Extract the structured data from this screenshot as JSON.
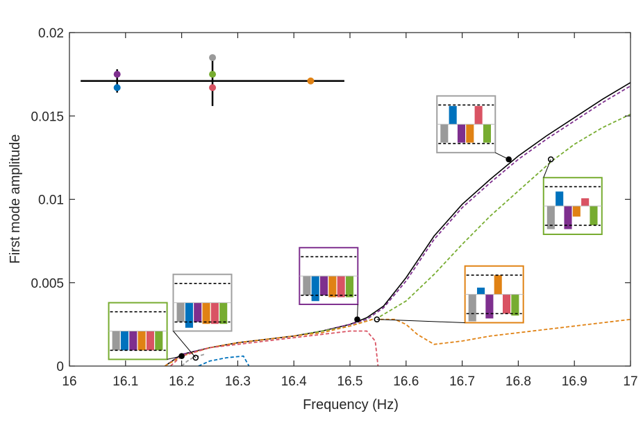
{
  "chart_data": {
    "type": "line",
    "xlabel": "Frequency (Hz)",
    "ylabel": "First mode amplitude",
    "xlim": [
      16,
      17
    ],
    "ylim": [
      0,
      0.02
    ],
    "xticks": [
      16,
      16.1,
      16.2,
      16.3,
      16.4,
      16.5,
      16.6,
      16.7,
      16.8,
      16.9,
      17
    ],
    "xtick_labels": [
      "16",
      "16.1",
      "16.2",
      "16.3",
      "16.4",
      "16.5",
      "16.6",
      "16.7",
      "16.8",
      "16.9",
      "17"
    ],
    "yticks": [
      0,
      0.005,
      0.01,
      0.015,
      0.02
    ],
    "ytick_labels": [
      "0",
      "0.005",
      "0.01",
      "0.015",
      "0.02"
    ],
    "grid": false,
    "series": [
      {
        "color": "#000000",
        "style": "solid",
        "x": [
          16.17,
          16.2,
          16.25,
          16.3,
          16.35,
          16.4,
          16.45,
          16.5,
          16.53,
          16.56,
          16.6,
          16.65,
          16.7,
          16.75,
          16.8,
          16.85,
          16.9,
          16.95,
          17.0
        ],
        "y": [
          0.0,
          0.0007,
          0.0011,
          0.0014,
          0.0016,
          0.0018,
          0.0021,
          0.0025,
          0.0029,
          0.0036,
          0.0053,
          0.0078,
          0.0097,
          0.0112,
          0.0126,
          0.0138,
          0.0149,
          0.016,
          0.017
        ]
      },
      {
        "color": "#7E2F8E",
        "style": "dashed",
        "x": [
          16.17,
          16.2,
          16.25,
          16.3,
          16.35,
          16.4,
          16.45,
          16.5,
          16.53,
          16.56,
          16.6,
          16.65,
          16.7,
          16.75,
          16.8,
          16.85,
          16.9,
          16.95,
          17.0
        ],
        "y": [
          0.0,
          0.0007,
          0.0011,
          0.0014,
          0.0016,
          0.0018,
          0.0021,
          0.0025,
          0.0028,
          0.0035,
          0.0051,
          0.0076,
          0.0095,
          0.011,
          0.0124,
          0.0136,
          0.0147,
          0.0158,
          0.0168
        ]
      },
      {
        "color": "#77AC30",
        "style": "dashed",
        "x": [
          16.17,
          16.2,
          16.25,
          16.3,
          16.35,
          16.4,
          16.45,
          16.5,
          16.55,
          16.6,
          16.65,
          16.7,
          16.75,
          16.8,
          16.86,
          16.9,
          16.95,
          17.0
        ],
        "y": [
          0.0,
          0.0006,
          0.0011,
          0.0014,
          0.0016,
          0.0018,
          0.0021,
          0.0024,
          0.0029,
          0.0039,
          0.0055,
          0.0073,
          0.009,
          0.0105,
          0.0123,
          0.0133,
          0.0143,
          0.0151
        ]
      },
      {
        "color": "#E08214",
        "style": "dashed",
        "x": [
          16.17,
          16.2,
          16.25,
          16.3,
          16.35,
          16.4,
          16.45,
          16.5,
          16.54,
          16.58,
          16.6,
          16.62,
          16.65,
          16.7,
          16.75,
          16.8,
          16.85,
          16.9,
          16.95,
          17.0
        ],
        "y": [
          0.0,
          0.0006,
          0.0011,
          0.0014,
          0.0016,
          0.0018,
          0.002,
          0.0024,
          0.0028,
          0.0028,
          0.0025,
          0.0019,
          0.0013,
          0.0015,
          0.0018,
          0.002,
          0.0022,
          0.0024,
          0.0026,
          0.0028
        ]
      },
      {
        "color": "#D95363",
        "style": "dashed",
        "x": [
          16.18,
          16.2,
          16.25,
          16.3,
          16.35,
          16.4,
          16.45,
          16.5,
          16.53,
          16.545,
          16.55
        ],
        "y": [
          0.0,
          0.0006,
          0.0011,
          0.0013,
          0.0015,
          0.0017,
          0.0019,
          0.0021,
          0.0021,
          0.0015,
          0.0
        ]
      },
      {
        "color": "#9A9A9A",
        "style": "dashed",
        "x": [
          16.2,
          16.21,
          16.22,
          16.24
        ],
        "y": [
          0.0,
          0.0003,
          0.0005,
          0.0007
        ]
      },
      {
        "color": "#0072BD",
        "style": "dashed",
        "x": [
          16.23,
          16.25,
          16.28,
          16.31,
          16.32
        ],
        "y": [
          0.0,
          0.0003,
          0.0005,
          0.0006,
          0.0
        ]
      }
    ],
    "points": [
      {
        "x": 16.2,
        "y": 0.0006,
        "fill": "#000000"
      },
      {
        "x": 16.225,
        "y": 0.0005,
        "fill": "#ffffff"
      },
      {
        "x": 16.513,
        "y": 0.0028,
        "fill": "#000000"
      },
      {
        "x": 16.548,
        "y": 0.0028,
        "fill": "#ffffff"
      },
      {
        "x": 16.783,
        "y": 0.0124,
        "fill": "#000000"
      },
      {
        "x": 16.858,
        "y": 0.0124,
        "fill": "#ffffff"
      }
    ],
    "range_bars": {
      "horizontal": {
        "x": [
          16.02,
          16.49
        ],
        "y": 0.0171
      },
      "vertical": [
        {
          "x": 16.085,
          "y": [
            0.0164,
            0.0178
          ]
        },
        {
          "x": 16.255,
          "y": [
            0.0156,
            0.0186
          ]
        }
      ],
      "dots": [
        {
          "x": 16.085,
          "y": 0.0175,
          "color": "#7E2F8E"
        },
        {
          "x": 16.085,
          "y": 0.0167,
          "color": "#0072BD"
        },
        {
          "x": 16.255,
          "y": 0.0185,
          "color": "#9A9A9A"
        },
        {
          "x": 16.255,
          "y": 0.0175,
          "color": "#77AC30"
        },
        {
          "x": 16.255,
          "y": 0.0167,
          "color": "#D95363"
        },
        {
          "x": 16.43,
          "y": 0.0171,
          "color": "#E08214"
        }
      ]
    },
    "insets": [
      {
        "border": "#77AC30",
        "x": 16.07,
        "y": 0.0038,
        "w": 0.104,
        "h": 0.0034,
        "bars": [
          -1,
          -1,
          -1,
          -1,
          -1,
          -1
        ],
        "target": [
          16.2,
          0.0006
        ]
      },
      {
        "border": "#A0A0A0",
        "x": 16.185,
        "y": 0.0055,
        "w": 0.104,
        "h": 0.0034,
        "bars": [
          -1,
          -1.3,
          -1,
          -1.1,
          -1.1,
          -1.1
        ],
        "target": [
          16.225,
          0.0005
        ]
      },
      {
        "border": "#7E2F8E",
        "x": 16.41,
        "y": 0.0071,
        "w": 0.104,
        "h": 0.0034,
        "bars": [
          -1,
          -1.3,
          -1,
          -1.1,
          -1.1,
          -1.1
        ],
        "target": [
          16.513,
          0.0028
        ]
      },
      {
        "border": "#E08214",
        "x": 16.705,
        "y": 0.006,
        "w": 0.104,
        "h": 0.0034,
        "bars": [
          -1.4,
          0.35,
          -1.25,
          1.0,
          -1.0,
          -1.1
        ],
        "target": [
          16.548,
          0.0028
        ]
      },
      {
        "border": "#A0A0A0",
        "x": 16.655,
        "y": 0.0162,
        "w": 0.104,
        "h": 0.0034,
        "bars": [
          -0.95,
          0.95,
          -0.95,
          -0.95,
          0.95,
          -0.95
        ],
        "target": [
          16.783,
          0.0124
        ]
      },
      {
        "border": "#77AC30",
        "x": 16.845,
        "y": 0.0113,
        "w": 0.104,
        "h": 0.0034,
        "bars": [
          -1.2,
          0.75,
          -1.2,
          -0.55,
          0.4,
          -1.0
        ],
        "target": [
          16.858,
          0.0124
        ]
      }
    ],
    "inset_bar_colors": [
      "#9A9A9A",
      "#0072BD",
      "#7E2F8E",
      "#E08214",
      "#D95363",
      "#77AC30"
    ]
  }
}
